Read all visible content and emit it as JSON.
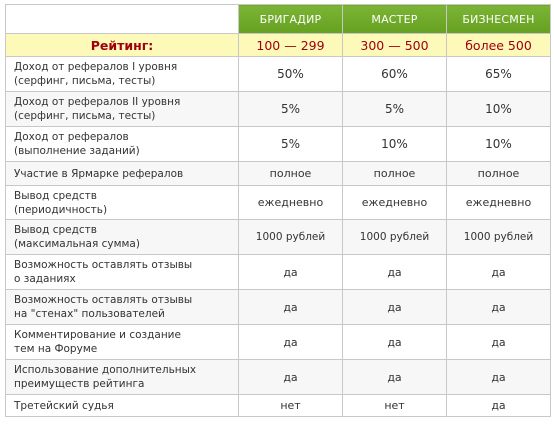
{
  "header": {
    "tiers": [
      "БРИГАДИР",
      "МАСТЕР",
      "БИЗНЕСМЕН"
    ]
  },
  "rating": {
    "label": "Рейтинг:",
    "values": [
      "100 — 299",
      "300 — 500",
      "более 500"
    ]
  },
  "rows": [
    {
      "feature": [
        "Доход от рефералов I уровня",
        "(серфинг, письма, тесты)"
      ],
      "values": [
        "50%",
        "60%",
        "65%"
      ]
    },
    {
      "feature": [
        "Доход от рефералов II уровня",
        "(серфинг, письма, тесты)"
      ],
      "values": [
        "5%",
        "5%",
        "10%"
      ]
    },
    {
      "feature": [
        "Доход от рефералов",
        "(выполнение заданий)"
      ],
      "values": [
        "5%",
        "10%",
        "10%"
      ]
    },
    {
      "feature": [
        "Участие в Ярмарке рефералов"
      ],
      "values": [
        "полное",
        "полное",
        "полное"
      ]
    },
    {
      "feature": [
        "Вывод средств",
        "(периодичность)"
      ],
      "values": [
        "ежедневно",
        "ежедневно",
        "ежедневно"
      ]
    },
    {
      "feature": [
        "Вывод средств",
        "(максимальная сумма)"
      ],
      "values": [
        "1000 рублей",
        "1000 рублей",
        "1000 рублей"
      ]
    },
    {
      "feature": [
        "Возможность оставлять отзывы",
        "о заданиях"
      ],
      "values": [
        "да",
        "да",
        "да"
      ]
    },
    {
      "feature": [
        "Возможность оставлять отзывы",
        "на \"стенах\" пользователей"
      ],
      "values": [
        "да",
        "да",
        "да"
      ]
    },
    {
      "feature": [
        "Комментирование и создание",
        "тем на Форуме"
      ],
      "values": [
        "да",
        "да",
        "да"
      ]
    },
    {
      "feature": [
        "Использование дополнительных",
        "преимуществ рейтинга"
      ],
      "values": [
        "да",
        "да",
        "да"
      ]
    },
    {
      "feature": [
        "Третейский судья"
      ],
      "values": [
        "нет",
        "нет",
        "да"
      ]
    }
  ],
  "colors": {
    "header_green": "#70a82a",
    "rating_bg": "#fdf9b8",
    "rating_text": "#a0000e",
    "row_alt_bg": "#f7f7f7",
    "border": "#c8c8c8"
  }
}
